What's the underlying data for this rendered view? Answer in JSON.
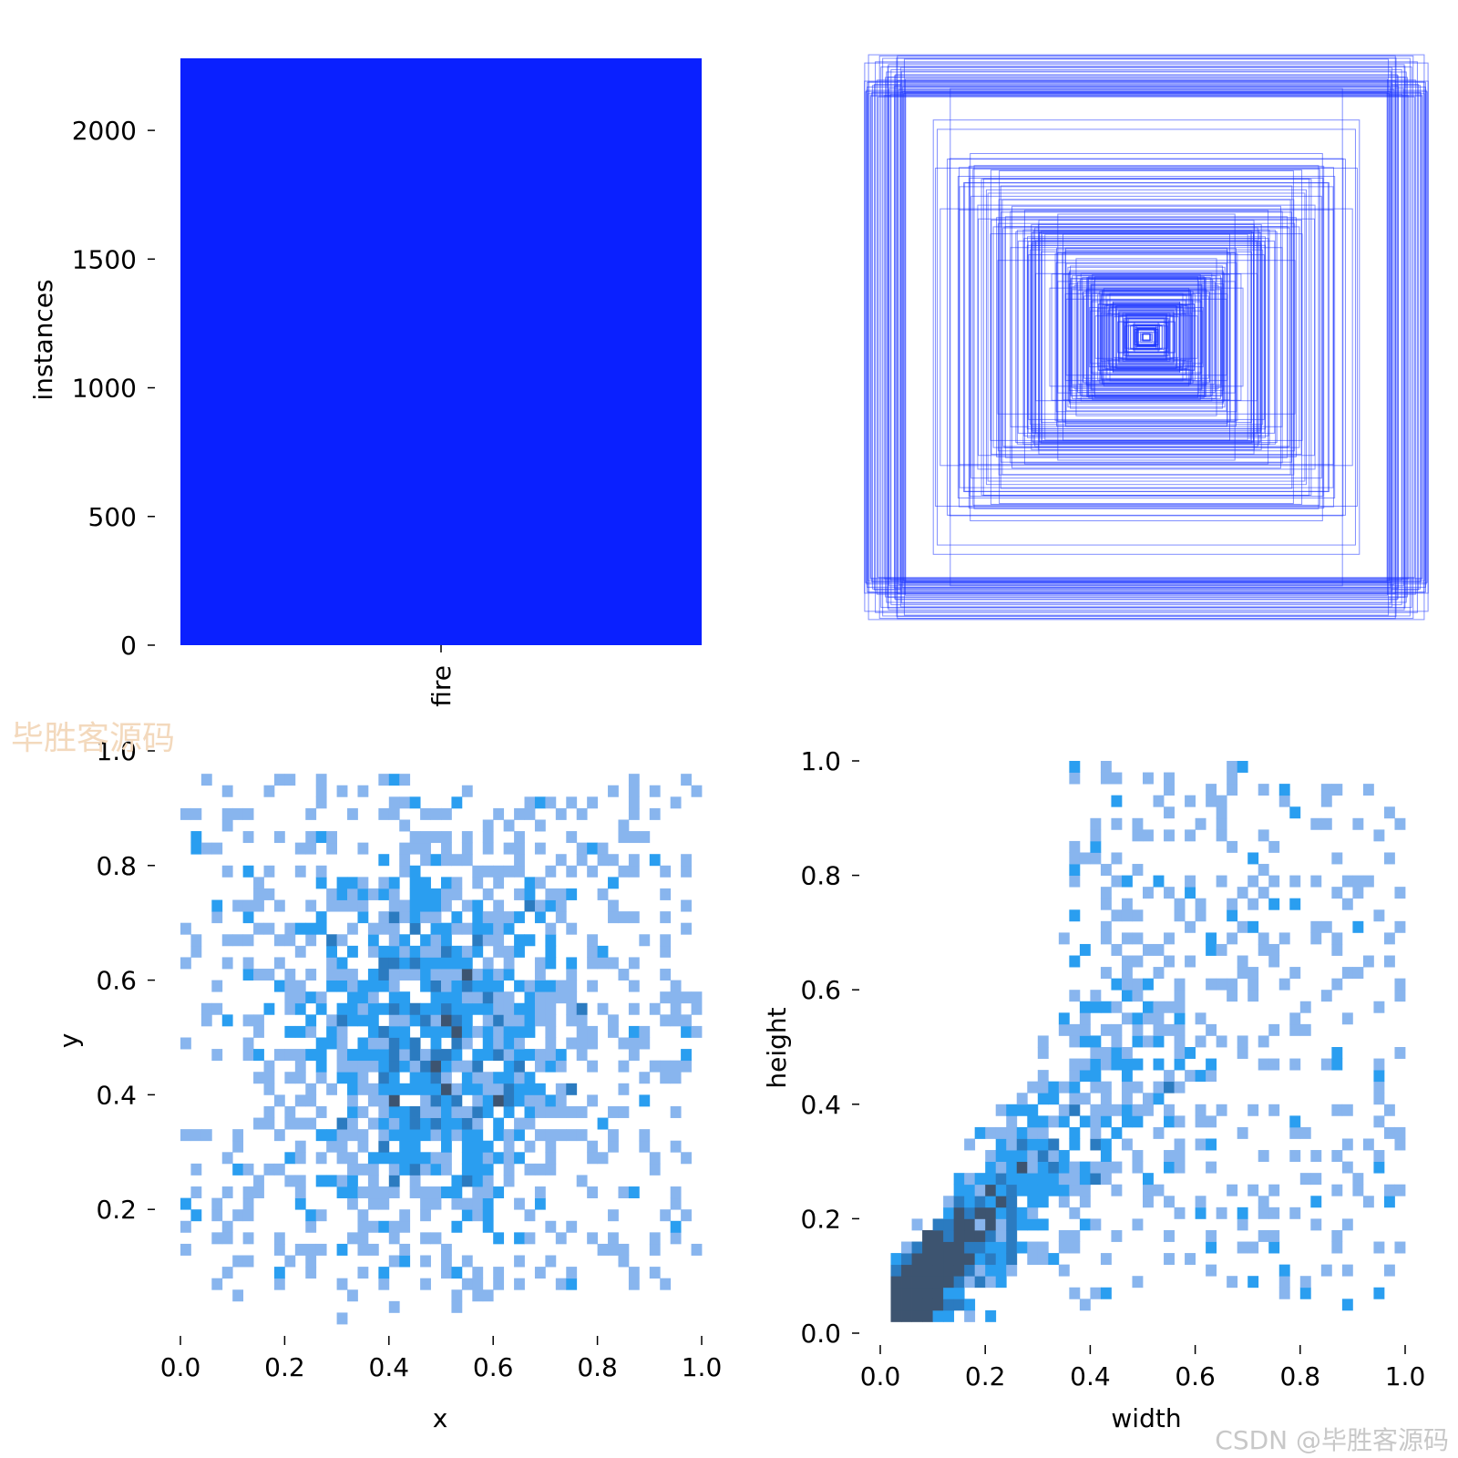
{
  "watermarks": {
    "center_left": "毕胜客源码",
    "bottom_right": "CSDN @毕胜客源码"
  },
  "colors": {
    "bar": "#0a20ff",
    "box_stroke": "#1a33ff",
    "hist_light": "#88b5ee",
    "hist_mid": "#2a9ef0",
    "hist_dark": "#3d5470"
  },
  "chart_data": [
    {
      "id": "instances-bar",
      "type": "bar",
      "categories": [
        "fire"
      ],
      "values": [
        2280
      ],
      "xlabel": "",
      "ylabel": "instances",
      "ylim": [
        0,
        2280
      ],
      "yticks": [
        0,
        500,
        1000,
        1500,
        2000
      ],
      "ytick_labels": [
        "0",
        "500",
        "1000",
        "1500",
        "2000"
      ],
      "grid": false,
      "legend": "none"
    },
    {
      "id": "box-overlay",
      "type": "scatter",
      "description_kind": "centered bounding boxes overlay",
      "grid": false,
      "legend": "none"
    },
    {
      "id": "xy-hist",
      "type": "heatmap",
      "xlabel": "x",
      "ylabel": "y",
      "xlim": [
        0,
        1
      ],
      "ylim": [
        0,
        1
      ],
      "xticks": [
        0.0,
        0.2,
        0.4,
        0.6,
        0.8,
        1.0
      ],
      "xtick_labels": [
        "0.0",
        "0.2",
        "0.4",
        "0.6",
        "0.8",
        "1.0"
      ],
      "yticks": [
        0.2,
        0.4,
        0.6,
        0.8,
        1.0
      ],
      "ytick_labels": [
        "0.2",
        "0.4",
        "0.6",
        "0.8",
        "1.0"
      ],
      "bins": 50,
      "center": [
        0.49,
        0.5
      ],
      "grid": false,
      "legend": "none"
    },
    {
      "id": "wh-hist",
      "type": "heatmap",
      "xlabel": "width",
      "ylabel": "height",
      "xlim": [
        0,
        1
      ],
      "ylim": [
        0,
        1
      ],
      "xticks": [
        0.0,
        0.2,
        0.4,
        0.6,
        0.8,
        1.0
      ],
      "xtick_labels": [
        "0.0",
        "0.2",
        "0.4",
        "0.6",
        "0.8",
        "1.0"
      ],
      "yticks": [
        0.0,
        0.2,
        0.4,
        0.6,
        0.8,
        1.0
      ],
      "ytick_labels": [
        "0.0",
        "0.2",
        "0.4",
        "0.6",
        "0.8",
        "1.0"
      ],
      "bins": 50,
      "mode": [
        0.06,
        0.08
      ],
      "grid": false,
      "legend": "none"
    }
  ]
}
